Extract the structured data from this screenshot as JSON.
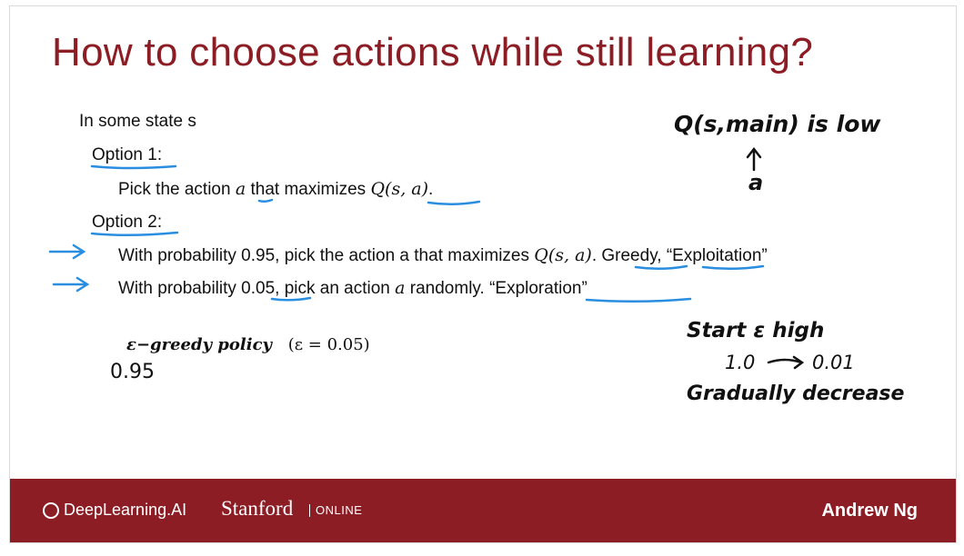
{
  "slide": {
    "title": "How to choose actions while still learning?",
    "state_line": "In some state s",
    "option1_label": "Option 1:",
    "option1_text_a": "Pick the action",
    "option1_var": "a",
    "option1_text_b": "that maximizes",
    "option1_q": "Q(s, a)",
    "option1_end": ".",
    "option2_label": "Option 2:",
    "line1_text_a": "With probability 0.95, pick the action a that maximizes",
    "line1_q": "Q(s, a)",
    "line1_text_b": ". Greedy, “Exploitation”",
    "line2_text_a": "With probability 0.05, pick an action",
    "line2_var": "a",
    "line2_text_b": "randomly. “Exploration”",
    "policy_label": "ε−greedy policy",
    "policy_eps": "(ε = 0.05)"
  },
  "handwriting": {
    "q_low": "Q(s,main) is low",
    "arrow_var": "a",
    "policy_value": "0.95",
    "start_eps": "Start ε high",
    "eps_from": "1.0",
    "eps_to": "0.01",
    "gradually": "Gradually decrease"
  },
  "footer": {
    "brand": "DeepLearning.AI",
    "university": "Stanford",
    "online": "ONLINE",
    "author": "Andrew Ng"
  },
  "colors": {
    "title": "#8c1d25",
    "footer_bg": "#8c1d25",
    "annotation_blue": "#2a8ee0"
  },
  "icons": [
    "deeplearning-logo-icon",
    "arrow-right-icon"
  ]
}
